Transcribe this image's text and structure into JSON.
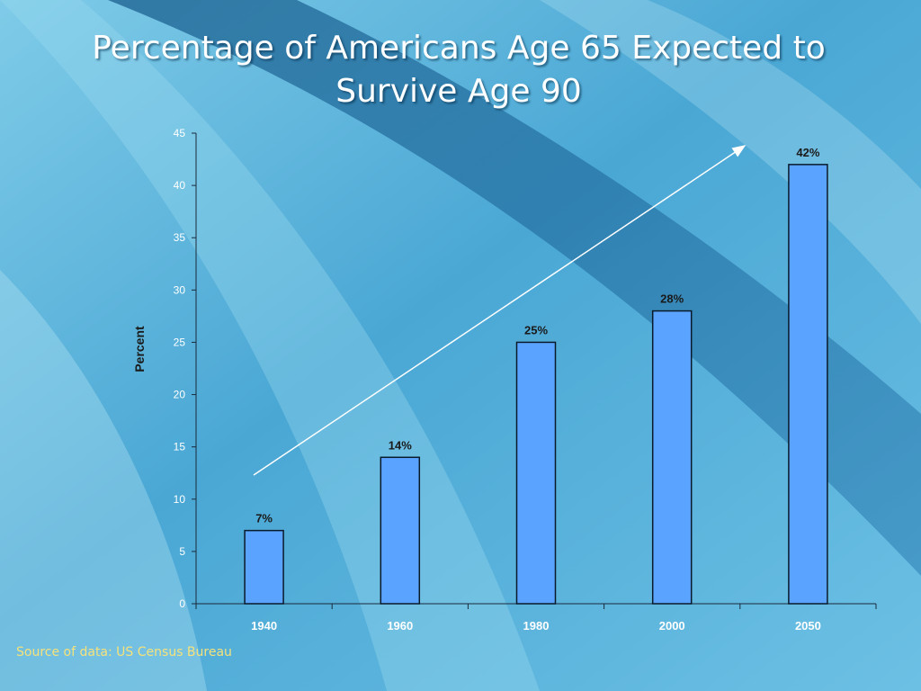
{
  "slide": {
    "title_line1": "Percentage of Americans Age 65 Expected to",
    "title_line2": "Survive Age 90",
    "source": "Source of data: US Census Bureau"
  },
  "colors": {
    "bar_fill": "#5aa4ff",
    "bar_stroke": "#0a1a2a",
    "background_light": "#8fd3ec",
    "background_dark": "#1f6fa3",
    "source_text": "#f5e27a"
  },
  "chart_data": {
    "type": "bar",
    "categories": [
      "1940",
      "1960",
      "1980",
      "2000",
      "2050"
    ],
    "values": [
      7,
      14,
      25,
      28,
      42
    ],
    "data_labels": [
      "7%",
      "14%",
      "25%",
      "28%",
      "42%"
    ],
    "ylabel": "Percent",
    "xlabel": "",
    "ylim": [
      0,
      45
    ],
    "yticks": [
      0,
      5,
      10,
      15,
      20,
      25,
      30,
      35,
      40,
      45
    ],
    "grid": false,
    "legend": "none",
    "annotation": "trend-arrow"
  }
}
